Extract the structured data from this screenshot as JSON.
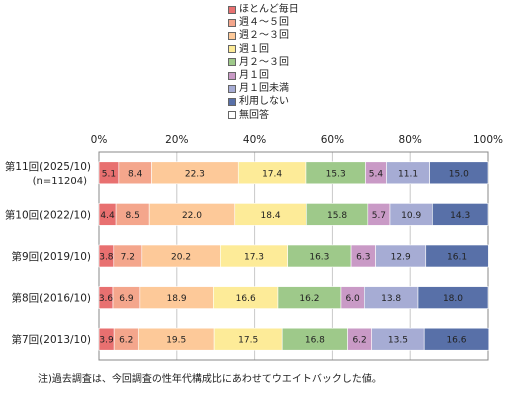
{
  "chart_data": {
    "type": "stacked-bar-100",
    "orientation": "horizontal",
    "xlim": [
      0,
      100
    ],
    "x_ticks": [
      "0%",
      "20%",
      "40%",
      "60%",
      "80%",
      "100%"
    ],
    "grid": true,
    "legend_position": "top",
    "categories": [
      {
        "label": "第11回(2025/10)",
        "sublabel": "(n=11204)"
      },
      {
        "label": "第10回(2022/10)",
        "sublabel": ""
      },
      {
        "label": "第9回(2019/10)",
        "sublabel": ""
      },
      {
        "label": "第8回(2016/10)",
        "sublabel": ""
      },
      {
        "label": "第7回(2013/10)",
        "sublabel": ""
      }
    ],
    "series": [
      {
        "name": "ほとんど毎日",
        "color": "#e87070",
        "values": [
          5.1,
          4.4,
          3.8,
          3.6,
          3.9
        ],
        "labels": [
          "5.1",
          "4.4",
          "3.8",
          "3.6",
          "3.9"
        ]
      },
      {
        "name": "週４～５回",
        "color": "#f4a68c",
        "values": [
          8.4,
          8.5,
          7.2,
          6.9,
          6.2
        ],
        "labels": [
          "8.4",
          "8.5",
          "7.2",
          "6.9",
          "6.2"
        ]
      },
      {
        "name": "週２～３回",
        "color": "#fdc999",
        "values": [
          22.3,
          22.0,
          20.2,
          18.9,
          19.5
        ],
        "labels": [
          "22.3",
          "22.0",
          "20.2",
          "18.9",
          "19.5"
        ]
      },
      {
        "name": "週１回",
        "color": "#fdeb98",
        "values": [
          17.4,
          18.4,
          17.3,
          16.6,
          17.5
        ],
        "labels": [
          "17.4",
          "18.4",
          "17.3",
          "16.6",
          "17.5"
        ]
      },
      {
        "name": "月２～３回",
        "color": "#9ec98a",
        "values": [
          15.3,
          15.8,
          16.3,
          16.2,
          16.8
        ],
        "labels": [
          "15.3",
          "15.8",
          "16.3",
          "16.2",
          "16.8"
        ]
      },
      {
        "name": "月１回",
        "color": "#c99ac6",
        "values": [
          5.4,
          5.7,
          6.3,
          6.0,
          6.2
        ],
        "labels": [
          "5.4",
          "5.7",
          "6.3",
          "6.0",
          "6.2"
        ]
      },
      {
        "name": "月１回未満",
        "color": "#a6acd4",
        "values": [
          11.1,
          10.9,
          12.9,
          13.8,
          13.5
        ],
        "labels": [
          "11.1",
          "10.9",
          "12.9",
          "13.8",
          "13.5"
        ]
      },
      {
        "name": "利用しない",
        "color": "#5870a8",
        "values": [
          15.0,
          14.3,
          16.1,
          18.0,
          16.6
        ],
        "labels": [
          "15.0",
          "14.3",
          "16.1",
          "18.0",
          "16.6"
        ]
      },
      {
        "name": "無回答",
        "color": "#ffffff",
        "values": [
          0,
          0,
          0,
          0,
          0
        ],
        "labels": [
          "",
          "",
          "",
          "",
          ""
        ]
      }
    ]
  },
  "note": "注)過去調査は、今回調査の性年代構成比にあわせてウエイトバックした値。"
}
